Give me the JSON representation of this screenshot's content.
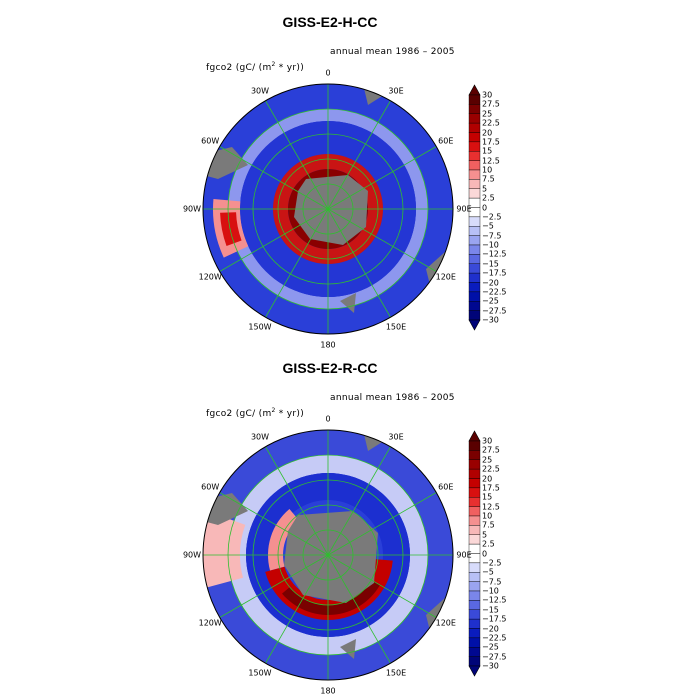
{
  "panels": [
    {
      "title": "GISS-E2-H-CC",
      "period": "annual mean 1986 – 2005",
      "variable": "fgco2",
      "units_prefix": "(gC/ (m",
      "units_sup": "2",
      "units_suffix": " * yr))",
      "feature": "polar-stereographic map of ocean CO2 flux centred on the South Pole; strong positive ring of outgassing (red) surrounding Antarctica along the circumpolar band, blue uptake zones further north"
    },
    {
      "title": "GISS-E2-R-CC",
      "period": "annual mean 1986 – 2005",
      "variable": "fgco2",
      "units_prefix": "(gC/ (m",
      "units_sup": "2",
      "units_suffix": " * yr))",
      "feature": "polar-stereographic map; broad blue uptake across subantarctic latitudes, red outgassing arc mainly south of the Indian/Pacific sectors"
    }
  ],
  "longitude_labels": [
    "0",
    "30E",
    "60E",
    "90E",
    "120E",
    "150E",
    "180",
    "150W",
    "120W",
    "90W",
    "60W",
    "30W"
  ],
  "colorbar": {
    "labels": [
      "30",
      "27.5",
      "25",
      "22.5",
      "20",
      "17.5",
      "15",
      "12.5",
      "10",
      "7.5",
      "5",
      "2.5",
      "0",
      "−2.5",
      "−5",
      "−7.5",
      "−10",
      "−12.5",
      "−15",
      "−17.5",
      "−20",
      "−22.5",
      "−25",
      "−27.5",
      "−30"
    ],
    "colors": [
      "#5a0000",
      "#7a0000",
      "#990000",
      "#b00000",
      "#c40000",
      "#d81010",
      "#e83030",
      "#f06060",
      "#f59090",
      "#f8b8b8",
      "#fbd8d8",
      "#ffffff",
      "#ffffff",
      "#d8dcfb",
      "#b8c0f6",
      "#9aa4f0",
      "#7a86ea",
      "#5a68e2",
      "#3a4ad8",
      "#1f30cc",
      "#0a1cbe",
      "#0010a8",
      "#000890",
      "#000478"
    ],
    "top_arrow": "#5a0000",
    "bottom_arrow": "#000478"
  },
  "colors": {
    "land": "#7a7a7a",
    "grid": "#2fbf2f",
    "ocean_low": "#1c2fd0",
    "ocean_high": "#c40000"
  }
}
